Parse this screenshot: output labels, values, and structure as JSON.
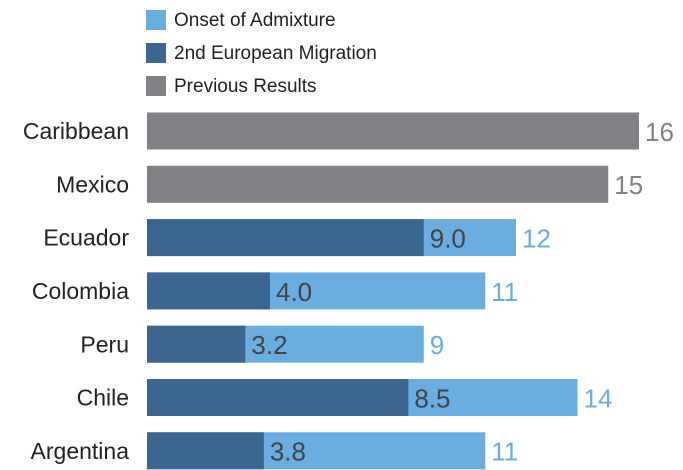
{
  "chart_data": {
    "type": "bar",
    "orientation": "horizontal",
    "categories": [
      "Caribbean",
      "Mexico",
      "Ecuador",
      "Colombia",
      "Peru",
      "Chile",
      "Argentina"
    ],
    "series": [
      {
        "name": "Onset of Admixture",
        "color": "#6aade0",
        "values": [
          null,
          null,
          12,
          11,
          9,
          14,
          11
        ]
      },
      {
        "name": "2nd European Migration",
        "color": "#3a6690",
        "values": [
          null,
          null,
          9.0,
          4.0,
          3.2,
          8.5,
          3.8
        ],
        "value_labels": [
          null,
          null,
          "9.0",
          "4.0",
          "3.2",
          "8.5",
          "3.8"
        ]
      },
      {
        "name": "Previous Results",
        "color": "#808285",
        "values": [
          16,
          15,
          null,
          null,
          null,
          null,
          null
        ]
      }
    ],
    "xlim": [
      0,
      16
    ]
  }
}
